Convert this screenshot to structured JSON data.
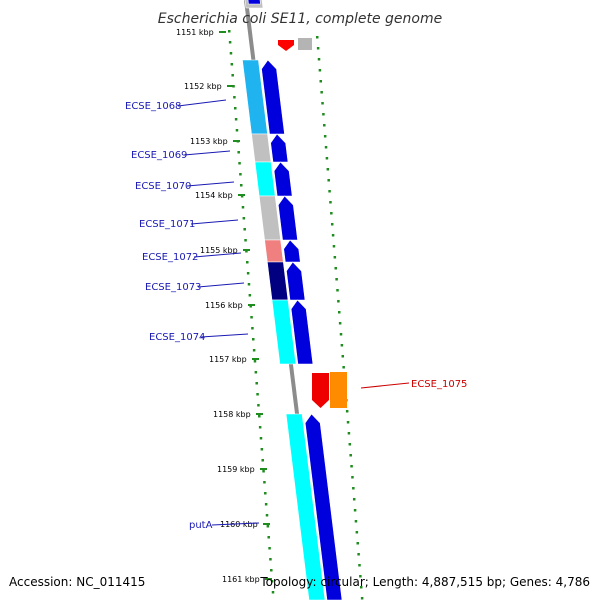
{
  "title": "Escherichia coli SE11, complete genome",
  "accession_text": "Accession: NC_011415",
  "info_text": "Topology: circular; Length: 4,887,515 bp; Genes: 4,786",
  "colors": {
    "backbone": "#8c8c8c",
    "dotted_ring": "#1e8c1e",
    "label_blue": "#1a1ab4",
    "label_red": "#cc0000"
  },
  "ticks": [
    {
      "label": "1151 kbp"
    },
    {
      "label": "1152 kbp"
    },
    {
      "label": "1153 kbp"
    },
    {
      "label": "1154 kbp"
    },
    {
      "label": "1155 kbp"
    },
    {
      "label": "1156 kbp"
    },
    {
      "label": "1157 kbp"
    },
    {
      "label": "1158 kbp"
    },
    {
      "label": "1159 kbp"
    },
    {
      "label": "1160 kbp"
    },
    {
      "label": "1161 kbp"
    }
  ],
  "gene_labels": [
    {
      "text": "ECSE_1068",
      "color": "#1a1ab4"
    },
    {
      "text": "ECSE_1069",
      "color": "#1a1ab4"
    },
    {
      "text": "ECSE_1070",
      "color": "#1a1ab4"
    },
    {
      "text": "ECSE_1071",
      "color": "#1a1ab4"
    },
    {
      "text": "ECSE_1072",
      "color": "#1a1ab4"
    },
    {
      "text": "ECSE_1073",
      "color": "#1a1ab4"
    },
    {
      "text": "ECSE_1074",
      "color": "#1a1ab4"
    },
    {
      "text": "ECSE_1075",
      "color": "#cc0000"
    },
    {
      "text": "putA",
      "color": "#1a1ab4"
    }
  ],
  "features": [
    {
      "name": "feature-top-gray-block",
      "color": "#c0c0c0"
    },
    {
      "name": "feature-top-blue-arrow",
      "color": "#0000dd"
    },
    {
      "name": "feature-top-red-arrow",
      "color": "#ff0000"
    },
    {
      "name": "feature-top-gray-small",
      "color": "#b4b4b4"
    },
    {
      "name": "cog-ecse-1068",
      "color": "#1fb4f0"
    },
    {
      "name": "gene-ecse-1068",
      "color": "#0000dd"
    },
    {
      "name": "cog-ecse-1069",
      "color": "#c0c0c0"
    },
    {
      "name": "gene-ecse-1069",
      "color": "#0000dd"
    },
    {
      "name": "cog-ecse-1070",
      "color": "#00ffff"
    },
    {
      "name": "gene-ecse-1070",
      "color": "#0000dd"
    },
    {
      "name": "cog-ecse-1071",
      "color": "#c0c0c0"
    },
    {
      "name": "gene-ecse-1071",
      "color": "#0000dd"
    },
    {
      "name": "cog-ecse-1072",
      "color": "#f08080"
    },
    {
      "name": "gene-ecse-1072",
      "color": "#0000dd"
    },
    {
      "name": "cog-ecse-1073",
      "color": "#000080"
    },
    {
      "name": "gene-ecse-1073",
      "color": "#0000dd"
    },
    {
      "name": "cog-ecse-1074",
      "color": "#00ffff"
    },
    {
      "name": "gene-ecse-1074",
      "color": "#0000dd"
    },
    {
      "name": "gene-ecse-1075",
      "color": "#ee0000"
    },
    {
      "name": "cog-ecse-1075",
      "color": "#ff8c00"
    },
    {
      "name": "cog-puta",
      "color": "#00ffff"
    },
    {
      "name": "gene-puta",
      "color": "#0000dd"
    }
  ]
}
